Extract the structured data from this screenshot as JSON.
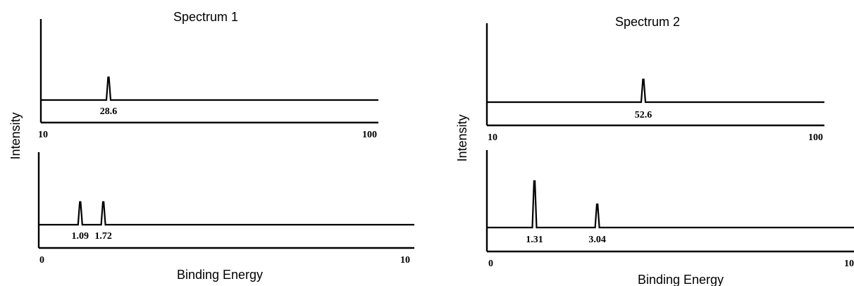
{
  "chart_data": [
    {
      "type": "line",
      "title": "Spectrum 1",
      "xlabel": "Binding Energy",
      "ylabel": "Intensity",
      "panels": [
        {
          "xlim": [
            10,
            100
          ],
          "tick_labels": [
            "10",
            "100"
          ],
          "peaks": [
            {
              "x": 28.6,
              "label": "28.6",
              "height": 0.95
            }
          ]
        },
        {
          "xlim": [
            0,
            10
          ],
          "tick_labels": [
            "0",
            "10"
          ],
          "peaks": [
            {
              "x": 1.09,
              "label": "1.09",
              "height": 0.95
            },
            {
              "x": 1.72,
              "label": "1.72",
              "height": 0.95
            }
          ]
        }
      ]
    },
    {
      "type": "line",
      "title": "Spectrum 2",
      "xlabel": "Binding Energy",
      "ylabel": "Intensity",
      "panels": [
        {
          "xlim": [
            10,
            100
          ],
          "tick_labels": [
            "10",
            "100"
          ],
          "peaks": [
            {
              "x": 52.6,
              "label": "52.6",
              "height": 0.95
            }
          ]
        },
        {
          "xlim": [
            0,
            10
          ],
          "tick_labels": [
            "0",
            "10"
          ],
          "peaks": [
            {
              "x": 1.31,
              "label": "1.31",
              "height": 1.0
            },
            {
              "x": 3.04,
              "label": "3.04",
              "height": 0.5
            }
          ]
        }
      ]
    }
  ]
}
